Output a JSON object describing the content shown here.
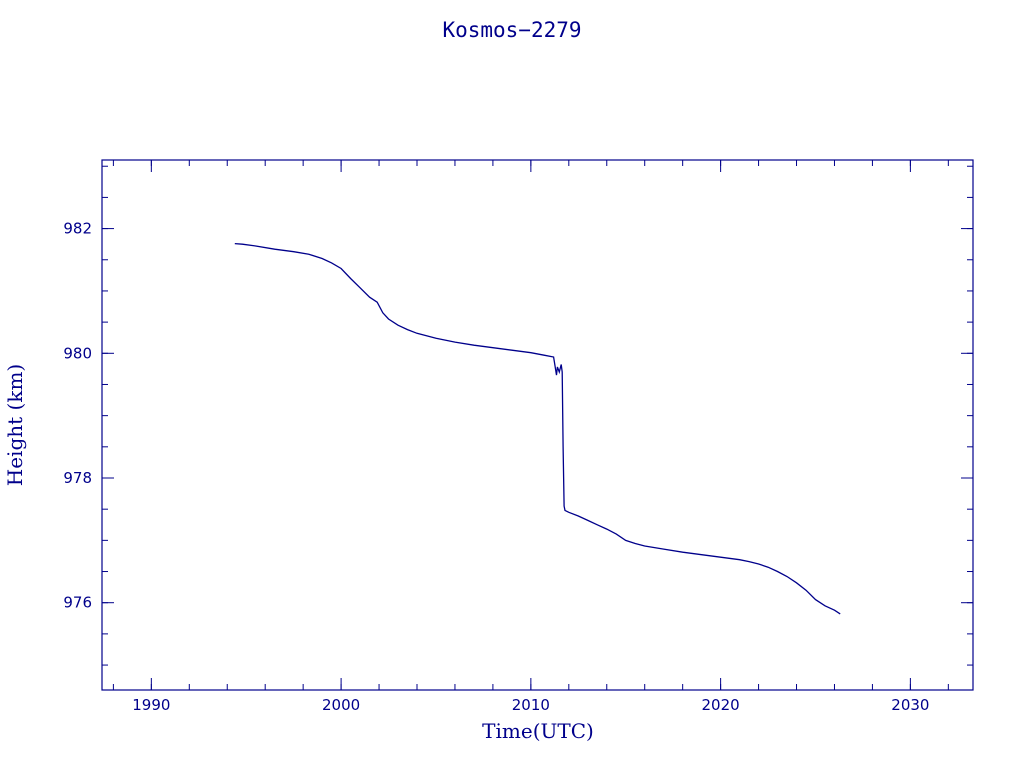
{
  "chart_data": {
    "type": "line",
    "title": "Kosmos−2279",
    "xlabel": "Time(UTC)",
    "ylabel": "Height (km)",
    "xlim": [
      1987.4,
      2033.3
    ],
    "ylim": [
      974.6,
      983.1
    ],
    "x_major_ticks": [
      1990,
      2000,
      2010,
      2020,
      2030
    ],
    "x_minor_step": 2,
    "y_major_ticks": [
      976,
      978,
      980,
      982
    ],
    "y_minor_step": 0.5,
    "grid": false,
    "color": "#00008b",
    "series": [
      {
        "x": [
          1994.4,
          1994.8,
          1995.5,
          1996.5,
          1997.5,
          1998.3,
          1999.0,
          1999.5,
          2000.0,
          2000.5,
          2001.0,
          2001.5,
          2001.9,
          2002.2,
          2002.5,
          2003.0,
          2003.5,
          2004.0,
          2005.0,
          2006.0,
          2007.0,
          2008.0,
          2009.0,
          2010.0,
          2010.7,
          2011.2,
          2011.35,
          2011.4,
          2011.5,
          2011.6,
          2011.65,
          2011.7,
          2011.75,
          2011.8,
          2012.0,
          2012.5,
          2013.0,
          2013.5,
          2014.0,
          2014.5,
          2015.0,
          2015.5,
          2016.0,
          2017.0,
          2018.0,
          2019.0,
          2020.0,
          2021.0,
          2021.5,
          2022.0,
          2022.5,
          2023.0,
          2023.5,
          2024.0,
          2024.5,
          2025.0,
          2025.5,
          2026.0,
          2026.3
        ],
        "y": [
          981.76,
          981.75,
          981.72,
          981.67,
          981.63,
          981.59,
          981.52,
          981.45,
          981.36,
          981.2,
          981.05,
          980.9,
          980.82,
          980.65,
          980.55,
          980.45,
          980.38,
          980.32,
          980.24,
          980.18,
          980.13,
          980.09,
          980.05,
          980.01,
          979.97,
          979.94,
          979.65,
          979.78,
          979.7,
          979.82,
          979.7,
          978.5,
          977.55,
          977.48,
          977.45,
          977.39,
          977.32,
          977.25,
          977.18,
          977.1,
          977.0,
          976.95,
          976.91,
          976.86,
          976.81,
          976.77,
          976.73,
          976.69,
          976.66,
          976.62,
          976.57,
          976.5,
          976.42,
          976.32,
          976.2,
          976.05,
          975.95,
          975.88,
          975.82
        ]
      }
    ]
  }
}
